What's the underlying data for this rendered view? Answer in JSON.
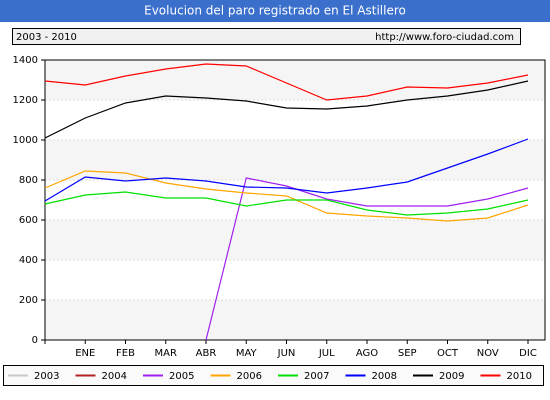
{
  "chart_data": {
    "type": "line",
    "title": "Evolucion del paro registrado en El Astillero",
    "subtitle": "2003 - 2010",
    "source": "http://www.foro-ciudad.com",
    "categories": [
      null,
      "ENE",
      "FEB",
      "MAR",
      "ABR",
      "MAY",
      "JUN",
      "JUL",
      "AGO",
      "SEP",
      "OCT",
      "NOV",
      "DIC"
    ],
    "ylim": [
      0,
      1400
    ],
    "yticks": [
      0,
      200,
      400,
      600,
      800,
      1000,
      1200,
      1400
    ],
    "grid": true,
    "series": [
      {
        "name": "2003",
        "color": "#c8c8c8",
        "values": [
          null,
          null,
          null,
          null,
          null,
          null,
          null,
          null,
          null,
          null,
          null,
          null,
          null
        ]
      },
      {
        "name": "2004",
        "color": "#b22222",
        "values": [
          null,
          null,
          null,
          null,
          null,
          null,
          null,
          null,
          null,
          null,
          null,
          null,
          null
        ]
      },
      {
        "name": "2005",
        "color": "#a020f0",
        "values": [
          null,
          null,
          null,
          null,
          0,
          810,
          770,
          705,
          670,
          670,
          670,
          705,
          760
        ]
      },
      {
        "name": "2006",
        "color": "#ffa500",
        "values": [
          760,
          845,
          835,
          785,
          755,
          735,
          720,
          635,
          620,
          610,
          595,
          610,
          675
        ]
      },
      {
        "name": "2007",
        "color": "#00e000",
        "values": [
          680,
          725,
          740,
          710,
          710,
          670,
          700,
          700,
          650,
          625,
          635,
          655,
          700
        ]
      },
      {
        "name": "2008",
        "color": "#0000ff",
        "values": [
          695,
          815,
          795,
          810,
          795,
          765,
          760,
          735,
          760,
          790,
          860,
          930,
          1005
        ]
      },
      {
        "name": "2009",
        "color": "#000000",
        "values": [
          1010,
          1110,
          1185,
          1220,
          1210,
          1195,
          1160,
          1155,
          1170,
          1200,
          1220,
          1250,
          1295
        ]
      },
      {
        "name": "2010",
        "color": "#ff0000",
        "values": [
          1295,
          1275,
          1320,
          1355,
          1380,
          1370,
          1285,
          1200,
          1220,
          1265,
          1260,
          1285,
          1325
        ]
      }
    ]
  }
}
